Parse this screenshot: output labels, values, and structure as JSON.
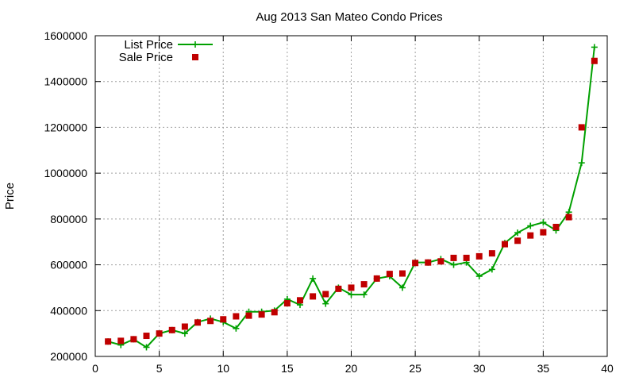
{
  "chart_data": {
    "type": "line",
    "title": "Aug 2013 San Mateo Condo Prices",
    "xlabel": "",
    "ylabel": "Price",
    "xlim": [
      0,
      40
    ],
    "ylim": [
      200000,
      1600000
    ],
    "x_ticks": [
      0,
      5,
      10,
      15,
      20,
      25,
      30,
      35,
      40
    ],
    "y_ticks": [
      200000,
      400000,
      600000,
      800000,
      1000000,
      1200000,
      1400000,
      1600000
    ],
    "grid": true,
    "legend_position": "top-left",
    "series": [
      {
        "name": "List Price",
        "style": "linespoints",
        "marker": "plus",
        "color": "#00a000",
        "points": [
          [
            1,
            265000
          ],
          [
            2,
            250000
          ],
          [
            3,
            275000
          ],
          [
            4,
            240000
          ],
          [
            5,
            300000
          ],
          [
            6,
            315000
          ],
          [
            7,
            300000
          ],
          [
            8,
            350000
          ],
          [
            9,
            365000
          ],
          [
            10,
            350000
          ],
          [
            11,
            322000
          ],
          [
            12,
            395000
          ],
          [
            13,
            395000
          ],
          [
            14,
            400000
          ],
          [
            15,
            450000
          ],
          [
            16,
            425000
          ],
          [
            17,
            540000
          ],
          [
            18,
            430000
          ],
          [
            19,
            500000
          ],
          [
            20,
            470000
          ],
          [
            21,
            470000
          ],
          [
            22,
            540000
          ],
          [
            23,
            550000
          ],
          [
            24,
            500000
          ],
          [
            25,
            610000
          ],
          [
            26,
            610000
          ],
          [
            27,
            625000
          ],
          [
            28,
            600000
          ],
          [
            29,
            610000
          ],
          [
            30,
            550000
          ],
          [
            31,
            580000
          ],
          [
            32,
            695000
          ],
          [
            33,
            740000
          ],
          [
            34,
            770000
          ],
          [
            35,
            785000
          ],
          [
            36,
            750000
          ],
          [
            37,
            830000
          ],
          [
            38,
            1045000
          ],
          [
            39,
            1550000
          ]
        ]
      },
      {
        "name": "Sale Price",
        "style": "points",
        "marker": "square",
        "color": "#c00000",
        "points": [
          [
            1,
            265000
          ],
          [
            2,
            268000
          ],
          [
            3,
            275000
          ],
          [
            4,
            290000
          ],
          [
            5,
            300000
          ],
          [
            6,
            315000
          ],
          [
            7,
            330000
          ],
          [
            8,
            348000
          ],
          [
            9,
            355000
          ],
          [
            10,
            362000
          ],
          [
            11,
            375000
          ],
          [
            12,
            378000
          ],
          [
            13,
            383000
          ],
          [
            14,
            393000
          ],
          [
            15,
            432000
          ],
          [
            16,
            445000
          ],
          [
            17,
            462000
          ],
          [
            18,
            472000
          ],
          [
            19,
            495000
          ],
          [
            20,
            500000
          ],
          [
            21,
            515000
          ],
          [
            22,
            540000
          ],
          [
            23,
            560000
          ],
          [
            24,
            562000
          ],
          [
            25,
            608000
          ],
          [
            26,
            610000
          ],
          [
            27,
            615000
          ],
          [
            28,
            630000
          ],
          [
            29,
            630000
          ],
          [
            30,
            637000
          ],
          [
            31,
            650000
          ],
          [
            32,
            690000
          ],
          [
            33,
            705000
          ],
          [
            34,
            728000
          ],
          [
            35,
            742000
          ],
          [
            36,
            765000
          ],
          [
            37,
            808000
          ],
          [
            38,
            1200000
          ],
          [
            39,
            1490000
          ]
        ]
      }
    ]
  }
}
